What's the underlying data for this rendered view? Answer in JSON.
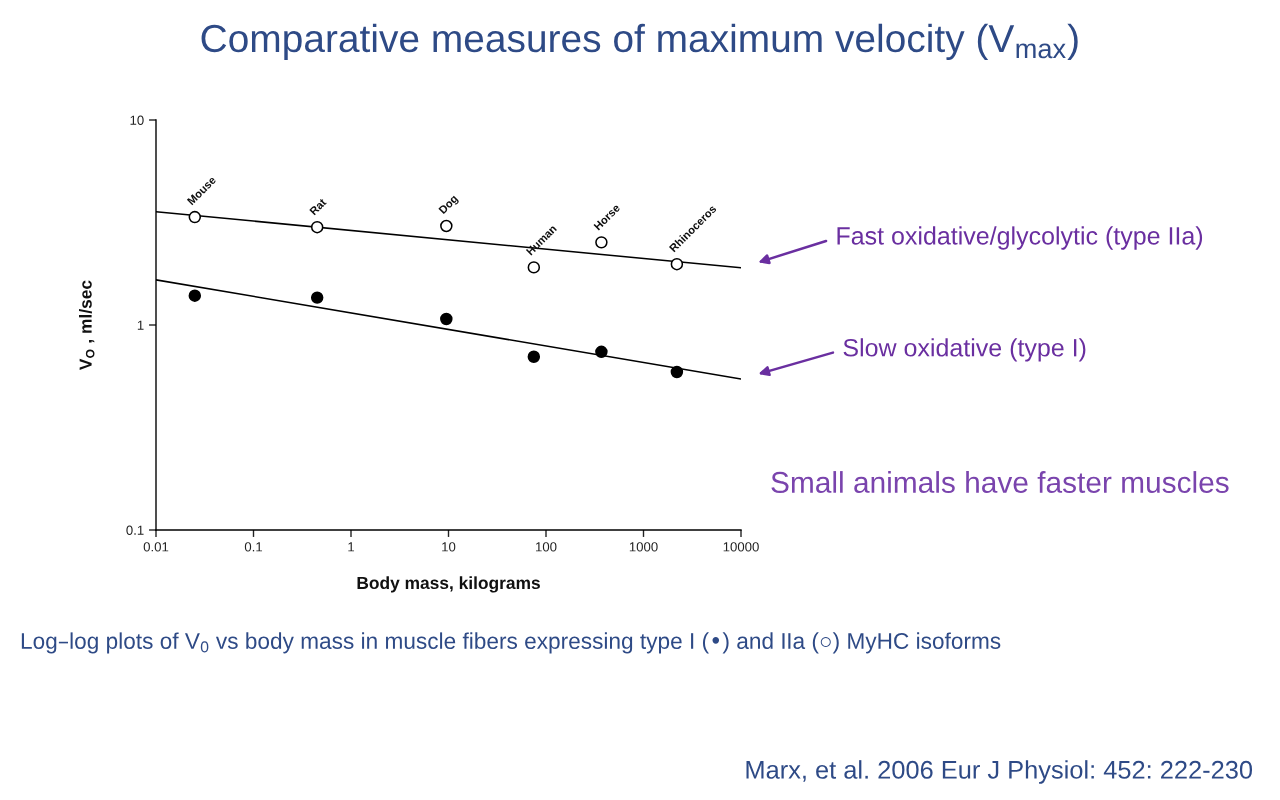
{
  "chart_data": {
    "type": "scatter",
    "title": "Comparative measures of maximum velocity (V$_{max}$)",
    "xlabel": "Body mass, kilograms",
    "ylabel": "V$_{O}$ , ml/sec",
    "log": "xy",
    "xlim": [
      0.01,
      10000
    ],
    "ylim": [
      0.1,
      10
    ],
    "xticks": [
      0.01,
      0.1,
      1,
      10,
      100,
      1000,
      10000
    ],
    "yticks": [
      0.1,
      1,
      10
    ],
    "marker": "circle",
    "series": [
      {
        "type": "line",
        "marker": "none",
        "name": "Fast oxidative/glycolytic (type IIa)",
        "color": "#000000",
        "x": [
          0.01,
          10000
        ],
        "values": [
          3.57,
          1.9
        ]
      },
      {
        "type": "line",
        "marker": "none",
        "name": "Slow oxidative (type I)",
        "color": "#000000",
        "x": [
          0.01,
          10000
        ],
        "values": [
          1.66,
          0.545
        ]
      },
      {
        "color": "#ffffff",
        "x": [
          0.025,
          0.45,
          9.5,
          75,
          370,
          2200
        ],
        "values": [
          3.36,
          3.0,
          3.04,
          1.91,
          2.53,
          1.98
        ]
      },
      {
        "color": "#000000",
        "x": [
          0.025,
          0.45,
          9.5,
          75,
          370,
          2200
        ],
        "values": [
          1.39,
          1.36,
          1.07,
          0.7,
          0.74,
          0.59
        ]
      }
    ],
    "annotations": [
      {
        "text": "Mouse",
        "x": 0.025,
        "y": 3.36
      },
      {
        "text": "Rat",
        "x": 0.45,
        "y": 3.0
      },
      {
        "text": "Dog",
        "x": 9.5,
        "y": 3.04
      },
      {
        "text": "Human",
        "x": 75,
        "y": 1.91
      },
      {
        "text": "Horse",
        "x": 370,
        "y": 2.53
      },
      {
        "text": "Rhinoceros",
        "x": 2200,
        "y": 1.98
      },
      "Small animals have faster muscles",
      "Log–log plots of V$_{0}$ vs body mass in muscle fibers expressing type I (•) and IIa (○) MyHC isoforms",
      "Marx, et al. 2006 Eur J Physiol: 452: 222-230"
    ]
  }
}
